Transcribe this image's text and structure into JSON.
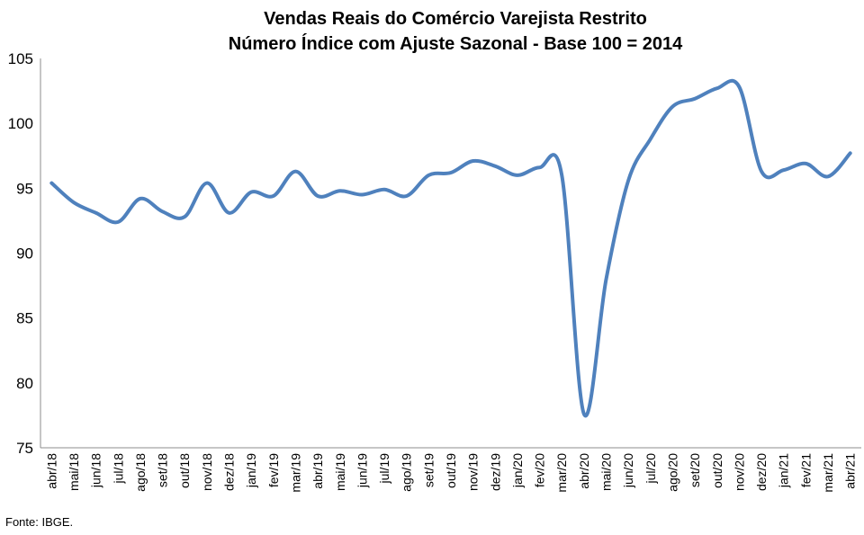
{
  "chart_data": {
    "type": "line",
    "title": "Vendas Reais do Comércio Varejista Restrito",
    "subtitle": "Número Índice com Ajuste Sazonal - Base 100 = 2014",
    "xlabel": "",
    "ylabel": "",
    "ylim": [
      75,
      105
    ],
    "yticks": [
      75,
      80,
      85,
      90,
      95,
      100,
      105
    ],
    "grid": false,
    "line_color": "#4f81bd",
    "categories": [
      "abr/18",
      "mai/18",
      "jun/18",
      "jul/18",
      "ago/18",
      "set/18",
      "out/18",
      "nov/18",
      "dez/18",
      "jan/19",
      "fev/19",
      "mar/19",
      "abr/19",
      "mai/19",
      "jun/19",
      "jul/19",
      "ago/19",
      "set/19",
      "out/19",
      "nov/19",
      "dez/19",
      "jan/20",
      "fev/20",
      "mar/20",
      "abr/20",
      "mai/20",
      "jun/20",
      "jul/20",
      "ago/20",
      "set/20",
      "out/20",
      "nov/20",
      "dez/20",
      "jan/21",
      "fev/21",
      "mar/21",
      "abr/21"
    ],
    "series": [
      {
        "values": [
          95.4,
          93.9,
          93.1,
          92.4,
          94.2,
          93.2,
          92.8,
          95.4,
          93.1,
          94.7,
          94.4,
          96.3,
          94.4,
          94.8,
          94.5,
          94.9,
          94.4,
          96.0,
          96.2,
          97.1,
          96.7,
          96.0,
          96.6,
          96.0,
          77.6,
          88.0,
          95.6,
          98.8,
          101.3,
          101.9,
          102.7,
          102.8,
          96.3,
          96.4,
          96.9,
          95.9,
          97.7
        ]
      }
    ]
  },
  "source_note": "Fonte: IBGE."
}
